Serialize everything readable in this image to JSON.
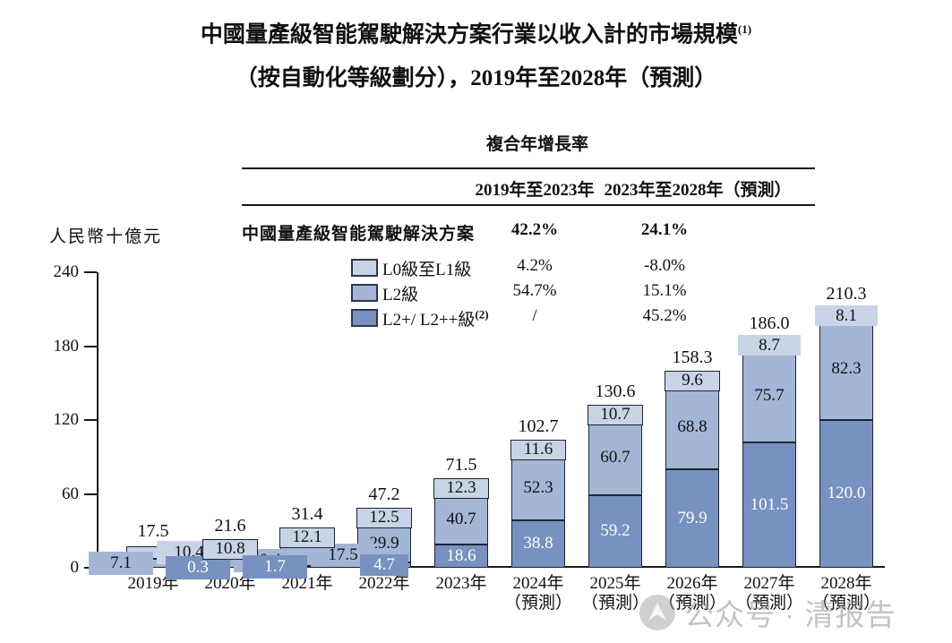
{
  "title": {
    "line1": "中國量產級智能駕駛解決方案行業以收入計的市場規模",
    "line1_footnote": "(1)",
    "line2": "（按自動化等級劃分），2019年至2028年（預測）"
  },
  "cagr_table": {
    "header": "複合年增長率",
    "period1": "2019年至2023年",
    "period2": "2023年至2028年（預測）",
    "rows": [
      {
        "label": "中國量產級智能駕駛解決方案",
        "v1": "42.2%",
        "v2": "24.1%"
      },
      {
        "swatch": "light",
        "label": "L0級至L1級",
        "v1": "4.2%",
        "v2": "-8.0%"
      },
      {
        "swatch": "medium",
        "label": "L2級",
        "v1": "54.7%",
        "v2": "15.1%"
      },
      {
        "swatch": "dark",
        "label": "L2+/ L2++級",
        "footnote": "(2)",
        "v1": "/",
        "v2": "45.2%"
      }
    ]
  },
  "y_axis": {
    "unit_label": "人民幣十億元",
    "ticks": [
      240,
      180,
      120,
      60,
      0
    ]
  },
  "chart_data": {
    "type": "bar",
    "stacked": true,
    "title": "中國量產級智能駕駛解決方案行業以收入計的市場規模（按自動化等級劃分），2019年至2028年（預測）",
    "ylabel": "人民幣十億元",
    "ylim": [
      0,
      240
    ],
    "grid": false,
    "legend_position": "table-upper-left",
    "categories": [
      {
        "year": "2019年",
        "note": ""
      },
      {
        "year": "2020年",
        "note": ""
      },
      {
        "year": "2021年",
        "note": ""
      },
      {
        "year": "2022年",
        "note": ""
      },
      {
        "year": "2023年",
        "note": ""
      },
      {
        "year": "2024年",
        "note": "（預測）"
      },
      {
        "year": "2025年",
        "note": "（預測）"
      },
      {
        "year": "2026年",
        "note": "（預測）"
      },
      {
        "year": "2027年",
        "note": "（預測）"
      },
      {
        "year": "2028年",
        "note": "（預測）"
      }
    ],
    "totals": [
      17.5,
      21.6,
      31.4,
      47.2,
      71.5,
      102.7,
      130.6,
      158.3,
      186.0,
      210.3
    ],
    "series": [
      {
        "key": "dark",
        "name": "L2+/ L2++級",
        "footnote": "(2)",
        "color": "#7791c0",
        "label_color": "#ffffff",
        "values": [
          null,
          0.3,
          1.7,
          4.7,
          18.6,
          38.8,
          59.2,
          79.9,
          101.5,
          120.0
        ],
        "label_pos": [
          "none",
          "chip-left",
          "chip-left",
          "chip-bottom",
          "in",
          "in",
          "in",
          "in",
          "in",
          "in"
        ]
      },
      {
        "key": "medium",
        "name": "L2級",
        "color": "#a3b6d6",
        "label_color": "#111111",
        "values": [
          7.1,
          10.4,
          17.5,
          29.9,
          40.7,
          52.3,
          60.7,
          68.8,
          75.7,
          82.3
        ],
        "label_pos": [
          "chip-left",
          "chip-right",
          "chip-right",
          "in",
          "in",
          "in",
          "in",
          "in",
          "in",
          "in"
        ]
      },
      {
        "key": "light",
        "name": "L0級至L1級",
        "color": "#c8d4e6",
        "label_color": "#111111",
        "values": [
          10.4,
          10.8,
          12.1,
          12.5,
          12.3,
          11.6,
          10.7,
          9.6,
          8.7,
          8.1
        ],
        "label_pos": [
          "chip-right",
          "chip-in-top",
          "chip-in-top",
          "chip-in-top",
          "chip-in-top",
          "chip-in-top",
          "chip-in-top",
          "chip-in-top",
          "chip-over-top",
          "chip-over-top"
        ]
      }
    ]
  },
  "watermark": {
    "text": "公众号 · 清报告"
  },
  "colors": {
    "light": "#c8d4e6",
    "medium": "#a3b6d6",
    "dark": "#7791c0",
    "outline": "#1c2533",
    "axis": "#1a1a1a"
  }
}
